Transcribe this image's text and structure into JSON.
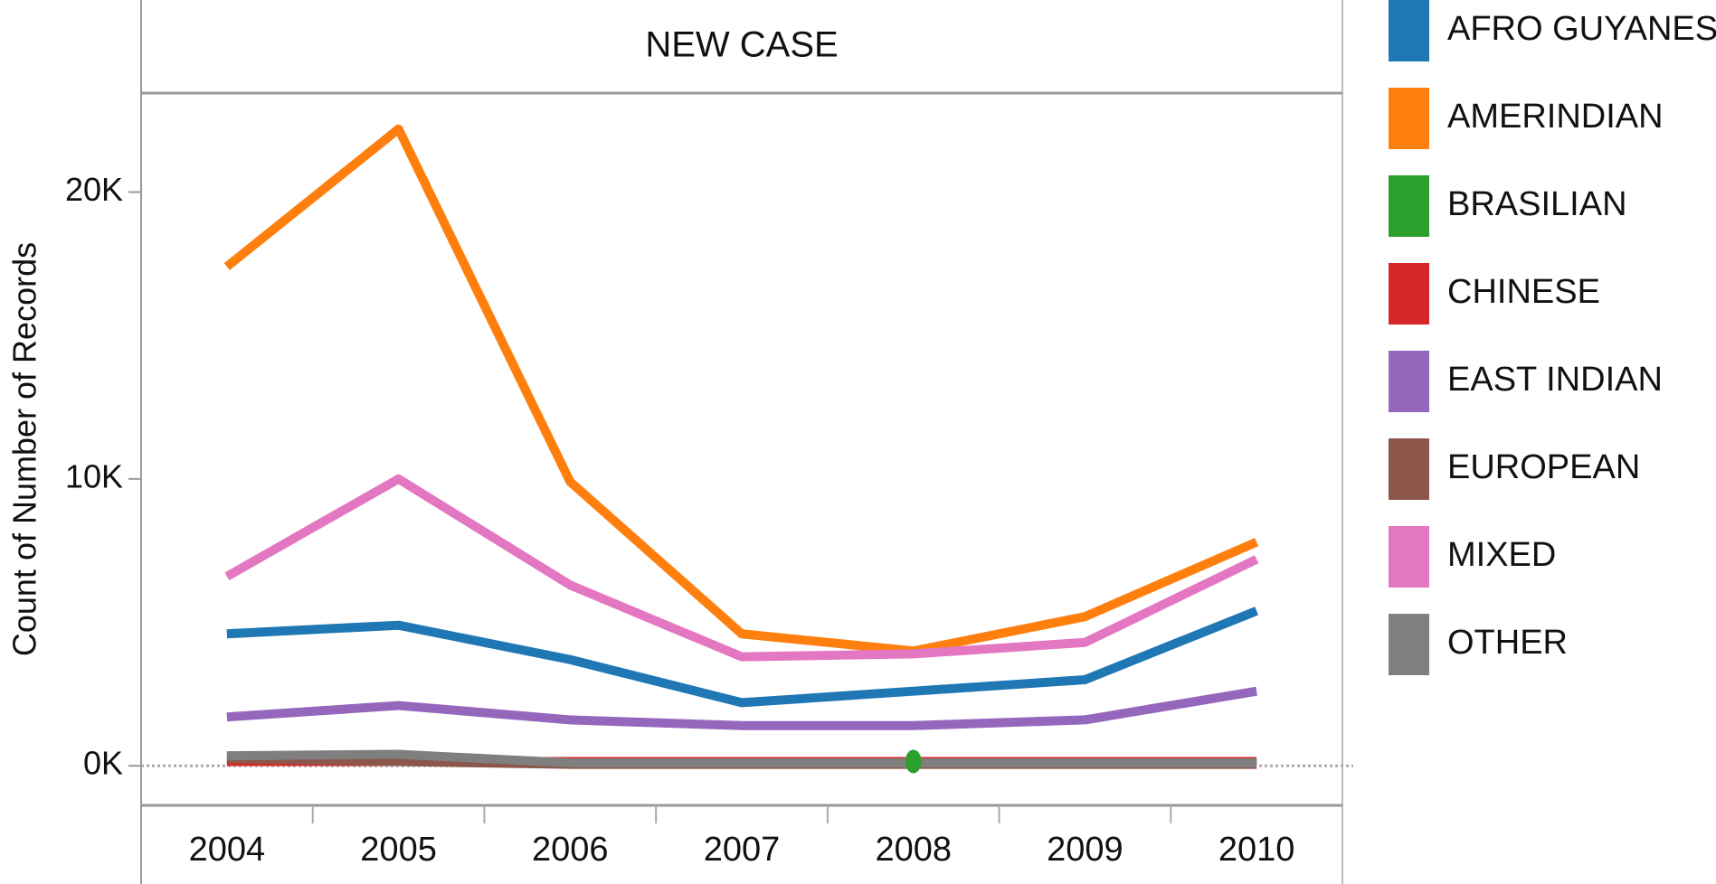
{
  "chart_data": {
    "type": "line",
    "title": "NEW CASE",
    "y_label": "Count of Number of Records",
    "categories": [
      "2004",
      "2005",
      "2006",
      "2007",
      "2008",
      "2009",
      "2010"
    ],
    "ylim": [
      -1380,
      23450
    ],
    "yticks": [
      {
        "value": 0,
        "label": "0K"
      },
      {
        "value": 10000,
        "label": "10K"
      },
      {
        "value": 20000,
        "label": "20K"
      }
    ],
    "legend": "right",
    "series": [
      {
        "name": "AFRO GUYANES",
        "color": "#1f77b4",
        "values": [
          4600,
          4900,
          3700,
          2200,
          2600,
          3000,
          5400
        ]
      },
      {
        "name": "AMERINDIAN",
        "color": "#ff7f0e",
        "values": [
          17400,
          22200,
          9900,
          4600,
          4000,
          5200,
          7800
        ]
      },
      {
        "name": "BRASILIAN",
        "color": "#2ca02c",
        "values": [
          null,
          null,
          null,
          null,
          150,
          null,
          null
        ]
      },
      {
        "name": "CHINESE",
        "color": "#d62728",
        "values": [
          150,
          150,
          150,
          150,
          150,
          150,
          150
        ]
      },
      {
        "name": "EAST INDIAN",
        "color": "#9467bd",
        "values": [
          1700,
          2100,
          1600,
          1400,
          1400,
          1600,
          2600
        ]
      },
      {
        "name": "EUROPEAN",
        "color": "#8c564b",
        "values": [
          250,
          150,
          50,
          50,
          50,
          50,
          50
        ]
      },
      {
        "name": "MIXED",
        "color": "#e377c2",
        "values": [
          6600,
          10000,
          6300,
          3800,
          3900,
          4300,
          7200
        ]
      },
      {
        "name": "OTHER",
        "color": "#7f7f7f",
        "values": [
          350,
          400,
          100,
          100,
          100,
          100,
          100
        ]
      }
    ]
  }
}
